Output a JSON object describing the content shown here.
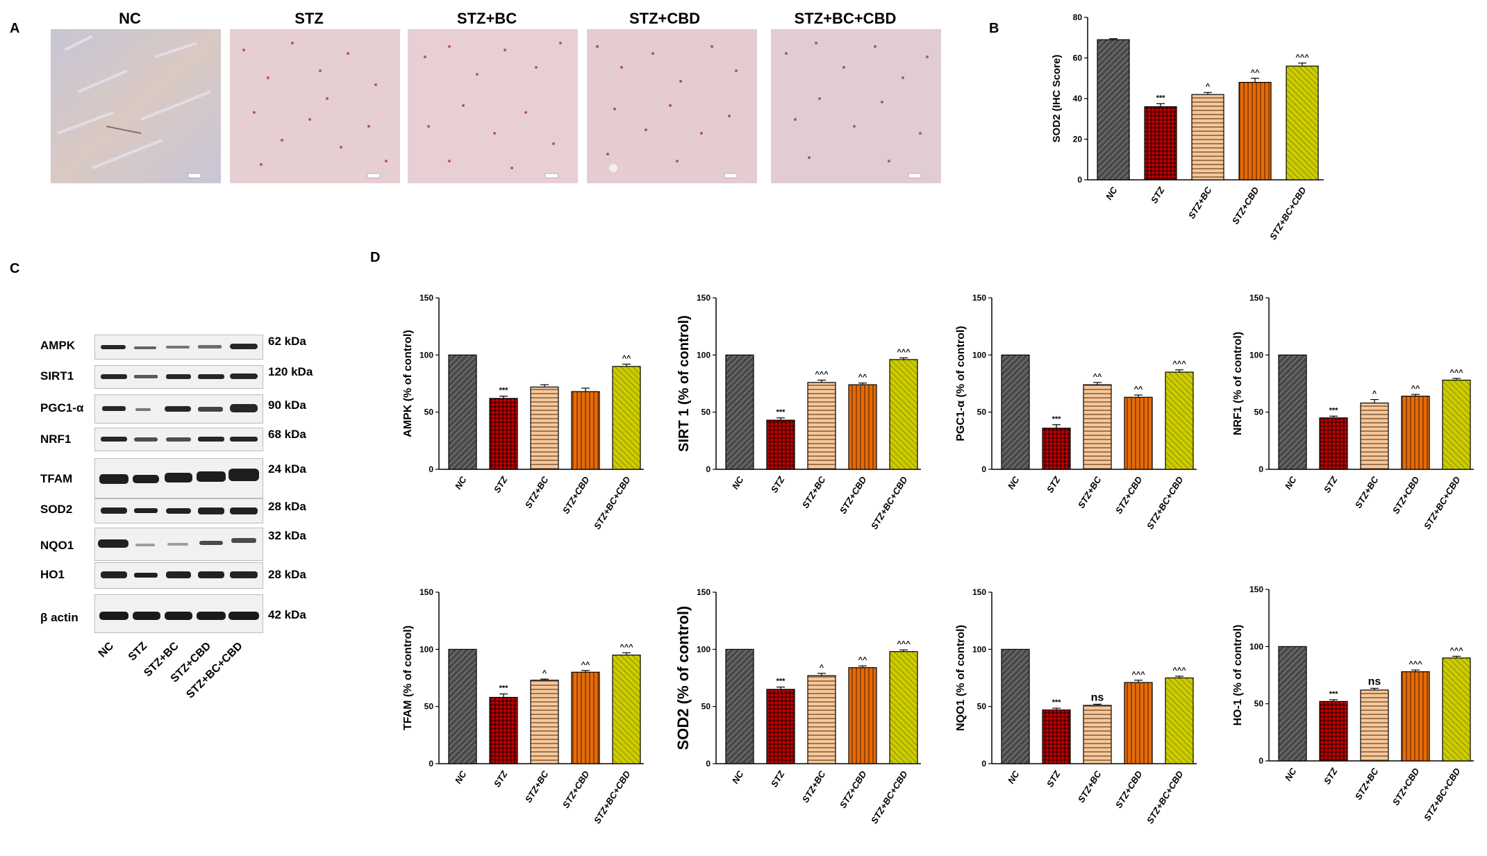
{
  "panels": {
    "a": "A",
    "b": "B",
    "c": "C",
    "d": "D"
  },
  "colors": {
    "NC": "#4a4a4a",
    "STZ": "#c00000",
    "STZ+BC": "#f5c79a",
    "STZ+CBD": "#e36c09",
    "STZ+BC+CBD": "#cccc00"
  },
  "micrographs": {
    "titles": [
      "NC",
      "STZ",
      "STZ+BC",
      "STZ+CBD",
      "STZ+BC+CBD"
    ]
  },
  "western_blot": {
    "proteins": [
      {
        "name": "AMPK",
        "kda": "62 kDa"
      },
      {
        "name": "SIRT1",
        "kda": "120 kDa"
      },
      {
        "name": "PGC1-α",
        "kda": "90 kDa"
      },
      {
        "name": "NRF1",
        "kda": "68 kDa"
      },
      {
        "name": "TFAM",
        "kda": "24 kDa"
      },
      {
        "name": "SOD2",
        "kda": "28 kDa"
      },
      {
        "name": "NQO1",
        "kda": "32 kDa"
      },
      {
        "name": "HO1",
        "kda": "28 kDa"
      },
      {
        "name": "β actin",
        "kda": "42 kDa"
      }
    ],
    "groups": [
      "NC",
      "STZ",
      "STZ+BC",
      "STZ+CBD",
      "STZ+BC+CBD"
    ]
  },
  "chart_data": [
    {
      "id": "sod2ihc",
      "type": "bar",
      "title": "",
      "xlabel": "",
      "ylabel": "SOD2 (IHC Score)",
      "categories": [
        "NC",
        "STZ",
        "STZ+BC",
        "STZ+CBD",
        "STZ+BC+CBD"
      ],
      "values": [
        69,
        36,
        42,
        48,
        56
      ],
      "errors": [
        0.5,
        1.5,
        1,
        2,
        1.5
      ],
      "annotations": [
        "",
        "***",
        "^",
        "^^",
        "^^^"
      ],
      "ylim": [
        0,
        80
      ],
      "yticks": [
        0,
        20,
        40,
        60,
        80
      ]
    },
    {
      "id": "ampk",
      "type": "bar",
      "title": "",
      "xlabel": "",
      "ylabel": "AMPK (% of control)",
      "categories": [
        "NC",
        "STZ",
        "STZ+BC",
        "STZ+CBD",
        "STZ+BC+CBD"
      ],
      "values": [
        100,
        62,
        72,
        68,
        90
      ],
      "errors": [
        0,
        2,
        2,
        3,
        2
      ],
      "annotations": [
        "",
        "***",
        "",
        "",
        "^^"
      ],
      "ylim": [
        0,
        150
      ],
      "yticks": [
        0,
        50,
        100,
        150
      ]
    },
    {
      "id": "sirt1",
      "type": "bar",
      "title": "",
      "xlabel": "",
      "ylabel": "SIRT 1 (% of control)",
      "categories": [
        "NC",
        "STZ",
        "STZ+BC",
        "STZ+CBD",
        "STZ+BC+CBD"
      ],
      "values": [
        100,
        43,
        76,
        74,
        96
      ],
      "errors": [
        0,
        2,
        2,
        1.5,
        1.5
      ],
      "annotations": [
        "",
        "***",
        "^^^",
        "^^",
        "^^^"
      ],
      "ylim": [
        0,
        150
      ],
      "yticks": [
        0,
        50,
        100,
        150
      ]
    },
    {
      "id": "pgc1a",
      "type": "bar",
      "title": "",
      "xlabel": "",
      "ylabel": "PGC1-α (% of control)",
      "categories": [
        "NC",
        "STZ",
        "STZ+BC",
        "STZ+CBD",
        "STZ+BC+CBD"
      ],
      "values": [
        100,
        36,
        74,
        63,
        85
      ],
      "errors": [
        0,
        3,
        2,
        2,
        2
      ],
      "annotations": [
        "",
        "***",
        "^^",
        "^^",
        "^^^"
      ],
      "ylim": [
        0,
        150
      ],
      "yticks": [
        0,
        50,
        100,
        150
      ]
    },
    {
      "id": "nrf1",
      "type": "bar",
      "title": "",
      "xlabel": "",
      "ylabel": "NRF1 (% of control)",
      "categories": [
        "NC",
        "STZ",
        "STZ+BC",
        "STZ+CBD",
        "STZ+BC+CBD"
      ],
      "values": [
        100,
        45,
        58,
        64,
        78
      ],
      "errors": [
        0,
        1.5,
        3,
        1.5,
        1.5
      ],
      "annotations": [
        "",
        "***",
        "^",
        "^^",
        "^^^"
      ],
      "ylim": [
        0,
        150
      ],
      "yticks": [
        0,
        50,
        100,
        150
      ]
    },
    {
      "id": "tfam",
      "type": "bar",
      "title": "",
      "xlabel": "",
      "ylabel": "TFAM (% of control)",
      "categories": [
        "NC",
        "STZ",
        "STZ+BC",
        "STZ+CBD",
        "STZ+BC+CBD"
      ],
      "values": [
        100,
        58,
        73,
        80,
        95
      ],
      "errors": [
        0,
        3,
        1,
        1.5,
        2
      ],
      "annotations": [
        "",
        "***",
        "^",
        "^^",
        "^^^"
      ],
      "ylim": [
        0,
        150
      ],
      "yticks": [
        0,
        50,
        100,
        150
      ]
    },
    {
      "id": "sod2",
      "type": "bar",
      "title": "",
      "xlabel": "",
      "ylabel": "SOD2 (% of control)",
      "categories": [
        "NC",
        "STZ",
        "STZ+BC",
        "STZ+CBD",
        "STZ+BC+CBD"
      ],
      "values": [
        100,
        65,
        77,
        84,
        98
      ],
      "errors": [
        0,
        2,
        2,
        1.5,
        1.5
      ],
      "annotations": [
        "",
        "***",
        "^",
        "^^",
        "^^^"
      ],
      "ylim": [
        0,
        150
      ],
      "yticks": [
        0,
        50,
        100,
        150
      ]
    },
    {
      "id": "nqo1",
      "type": "bar",
      "title": "",
      "xlabel": "",
      "ylabel": "NQO1 (% of control)",
      "categories": [
        "NC",
        "STZ",
        "STZ+BC",
        "STZ+CBD",
        "STZ+BC+CBD"
      ],
      "values": [
        100,
        47,
        51,
        71,
        75
      ],
      "errors": [
        0,
        1.5,
        1,
        2,
        1.5
      ],
      "annotations": [
        "",
        "***",
        "ns",
        "^^^",
        "^^^"
      ],
      "ylim": [
        0,
        150
      ],
      "yticks": [
        0,
        50,
        100,
        150
      ]
    },
    {
      "id": "ho1",
      "type": "bar",
      "title": "",
      "xlabel": "",
      "ylabel": "HO-1 (% of control)",
      "categories": [
        "NC",
        "STZ",
        "STZ+BC",
        "STZ+CBD",
        "STZ+BC+CBD"
      ],
      "values": [
        100,
        52,
        62,
        78,
        90
      ],
      "errors": [
        0,
        1.5,
        1.5,
        1.5,
        1.5
      ],
      "annotations": [
        "",
        "***",
        "ns",
        "^^^",
        "^^^"
      ],
      "ylim": [
        0,
        150
      ],
      "yticks": [
        0,
        50,
        100,
        150
      ]
    }
  ]
}
